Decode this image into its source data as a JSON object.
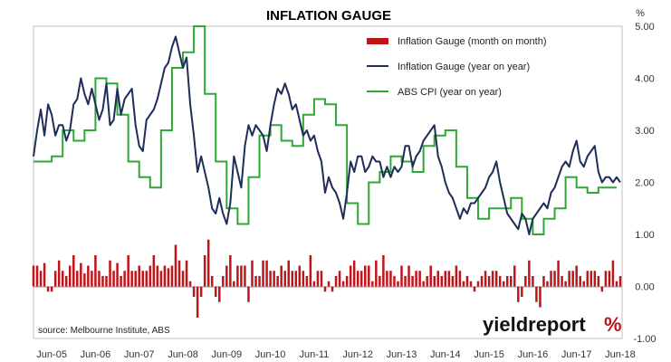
{
  "chart_data": {
    "type": "bar+line",
    "title": "INFLATION GAUGE",
    "unit_label": "%",
    "ylim": [
      -1.0,
      5.0
    ],
    "y_ticks": [
      "5.00",
      "4.00",
      "3.00",
      "2.00",
      "1.00",
      "0.00",
      "-1.00"
    ],
    "x_ticks": [
      "Jun-05",
      "Jun-06",
      "Jun-07",
      "Jun-08",
      "Jun-09",
      "Jun-10",
      "Jun-11",
      "Jun-12",
      "Jun-13",
      "Jun-14",
      "Jun-15",
      "Jun-16",
      "Jun-17",
      "Jun-18"
    ],
    "grid": false,
    "legend_position": "top-right",
    "source": "source: Melbourne Institute, ABS",
    "brand_text": "yieldreport",
    "brand_symbol": "%",
    "series": [
      {
        "name": "Inflation Gauge (month on month)",
        "kind": "bar",
        "color": "#c0141b",
        "x": [
          "2005-01",
          "2005-02",
          "2005-03",
          "2005-04",
          "2005-05",
          "2005-06",
          "2005-07",
          "2005-08",
          "2005-09",
          "2005-10",
          "2005-11",
          "2005-12",
          "2006-01",
          "2006-02",
          "2006-03",
          "2006-04",
          "2006-05",
          "2006-06",
          "2006-07",
          "2006-08",
          "2006-09",
          "2006-10",
          "2006-11",
          "2006-12",
          "2007-01",
          "2007-02",
          "2007-03",
          "2007-04",
          "2007-05",
          "2007-06",
          "2007-07",
          "2007-08",
          "2007-09",
          "2007-10",
          "2007-11",
          "2007-12",
          "2008-01",
          "2008-02",
          "2008-03",
          "2008-04",
          "2008-05",
          "2008-06",
          "2008-07",
          "2008-08",
          "2008-09",
          "2008-10",
          "2008-11",
          "2008-12",
          "2009-01",
          "2009-02",
          "2009-03",
          "2009-04",
          "2009-05",
          "2009-06",
          "2009-07",
          "2009-08",
          "2009-09",
          "2009-10",
          "2009-11",
          "2009-12",
          "2010-01",
          "2010-02",
          "2010-03",
          "2010-04",
          "2010-05",
          "2010-06",
          "2010-07",
          "2010-08",
          "2010-09",
          "2010-10",
          "2010-11",
          "2010-12",
          "2011-01",
          "2011-02",
          "2011-03",
          "2011-04",
          "2011-05",
          "2011-06",
          "2011-07",
          "2011-08",
          "2011-09",
          "2011-10",
          "2011-11",
          "2011-12",
          "2012-01",
          "2012-02",
          "2012-03",
          "2012-04",
          "2012-05",
          "2012-06",
          "2012-07",
          "2012-08",
          "2012-09",
          "2012-10",
          "2012-11",
          "2012-12",
          "2013-01",
          "2013-02",
          "2013-03",
          "2013-04",
          "2013-05",
          "2013-06",
          "2013-07",
          "2013-08",
          "2013-09",
          "2013-10",
          "2013-11",
          "2013-12",
          "2014-01",
          "2014-02",
          "2014-03",
          "2014-04",
          "2014-05",
          "2014-06",
          "2014-07",
          "2014-08",
          "2014-09",
          "2014-10",
          "2014-11",
          "2014-12",
          "2015-01",
          "2015-02",
          "2015-03",
          "2015-04",
          "2015-05",
          "2015-06",
          "2015-07",
          "2015-08",
          "2015-09",
          "2015-10",
          "2015-11",
          "2015-12",
          "2016-01",
          "2016-02",
          "2016-03",
          "2016-04",
          "2016-05",
          "2016-06",
          "2016-07",
          "2016-08",
          "2016-09",
          "2016-10",
          "2016-11",
          "2016-12",
          "2017-01",
          "2017-02",
          "2017-03",
          "2017-04",
          "2017-05",
          "2017-06",
          "2017-07",
          "2017-08",
          "2017-09",
          "2017-10",
          "2017-11",
          "2017-12",
          "2018-01",
          "2018-02",
          "2018-03",
          "2018-04",
          "2018-05",
          "2018-06"
        ],
        "values": [
          0.4,
          0.4,
          0.3,
          0.45,
          -0.1,
          -0.1,
          0.3,
          0.5,
          0.3,
          0.2,
          0.4,
          0.6,
          0.3,
          0.45,
          0.25,
          0.4,
          0.3,
          0.6,
          0.3,
          0.2,
          0.2,
          0.5,
          0.3,
          0.45,
          0.2,
          0.3,
          0.6,
          0.3,
          0.3,
          0.4,
          0.3,
          0.3,
          0.4,
          0.6,
          0.4,
          0.3,
          0.4,
          0.35,
          0.4,
          0.8,
          0.5,
          0.3,
          0.5,
          0.1,
          -0.2,
          -0.6,
          -0.2,
          0.6,
          0.9,
          0.2,
          -0.2,
          -0.3,
          0.2,
          0.4,
          0.6,
          0.1,
          0.4,
          0.4,
          0.4,
          -0.3,
          0.5,
          0.2,
          0.2,
          0.5,
          0.5,
          0.3,
          0.3,
          0.2,
          0.4,
          0.3,
          0.5,
          0.3,
          0.3,
          0.4,
          0.3,
          0.2,
          0.6,
          0.1,
          0.3,
          0.3,
          -0.1,
          0.1,
          -0.1,
          0.2,
          0.3,
          0.1,
          0.2,
          0.4,
          0.5,
          0.3,
          0.3,
          0.4,
          0.4,
          0.1,
          0.5,
          0.2,
          0.6,
          0.3,
          0.3,
          0.2,
          0.1,
          0.4,
          0.2,
          0.4,
          0.2,
          0.3,
          0.3,
          0.1,
          0.2,
          0.4,
          0.2,
          0.3,
          0.2,
          0.3,
          0.3,
          0.2,
          0.4,
          0.3,
          0.1,
          0.2,
          0.1,
          -0.1,
          0.1,
          0.2,
          0.3,
          0.2,
          0.3,
          0.3,
          0.2,
          0.1,
          0.2,
          0.2,
          0.4,
          -0.3,
          -0.2,
          0.2,
          0.5,
          0.2,
          -0.3,
          -0.4,
          0.2,
          0.1,
          0.3,
          0.3,
          0.5,
          0.2,
          0.1,
          0.3,
          0.3,
          0.4,
          0.2,
          0.1,
          0.3,
          0.3,
          0.3,
          0.2,
          -0.1,
          0.3,
          0.3,
          0.5,
          0.1,
          0.2
        ]
      },
      {
        "name": "Inflation Gauge (year on year)",
        "kind": "line",
        "color": "#1f2d5a",
        "x": [
          "2005-01",
          "2005-02",
          "2005-03",
          "2005-04",
          "2005-05",
          "2005-06",
          "2005-07",
          "2005-08",
          "2005-09",
          "2005-10",
          "2005-11",
          "2005-12",
          "2006-01",
          "2006-02",
          "2006-03",
          "2006-04",
          "2006-05",
          "2006-06",
          "2006-07",
          "2006-08",
          "2006-09",
          "2006-10",
          "2006-11",
          "2006-12",
          "2007-01",
          "2007-02",
          "2007-03",
          "2007-04",
          "2007-05",
          "2007-06",
          "2007-07",
          "2007-08",
          "2007-09",
          "2007-10",
          "2007-11",
          "2007-12",
          "2008-01",
          "2008-02",
          "2008-03",
          "2008-04",
          "2008-05",
          "2008-06",
          "2008-07",
          "2008-08",
          "2008-09",
          "2008-10",
          "2008-11",
          "2008-12",
          "2009-01",
          "2009-02",
          "2009-03",
          "2009-04",
          "2009-05",
          "2009-06",
          "2009-07",
          "2009-08",
          "2009-09",
          "2009-10",
          "2009-11",
          "2009-12",
          "2010-01",
          "2010-02",
          "2010-03",
          "2010-04",
          "2010-05",
          "2010-06",
          "2010-07",
          "2010-08",
          "2010-09",
          "2010-10",
          "2010-11",
          "2010-12",
          "2011-01",
          "2011-02",
          "2011-03",
          "2011-04",
          "2011-05",
          "2011-06",
          "2011-07",
          "2011-08",
          "2011-09",
          "2011-10",
          "2011-11",
          "2011-12",
          "2012-01",
          "2012-02",
          "2012-03",
          "2012-04",
          "2012-05",
          "2012-06",
          "2012-07",
          "2012-08",
          "2012-09",
          "2012-10",
          "2012-11",
          "2012-12",
          "2013-01",
          "2013-02",
          "2013-03",
          "2013-04",
          "2013-05",
          "2013-06",
          "2013-07",
          "2013-08",
          "2013-09",
          "2013-10",
          "2013-11",
          "2013-12",
          "2014-01",
          "2014-02",
          "2014-03",
          "2014-04",
          "2014-05",
          "2014-06",
          "2014-07",
          "2014-08",
          "2014-09",
          "2014-10",
          "2014-11",
          "2014-12",
          "2015-01",
          "2015-02",
          "2015-03",
          "2015-04",
          "2015-05",
          "2015-06",
          "2015-07",
          "2015-08",
          "2015-09",
          "2015-10",
          "2015-11",
          "2015-12",
          "2016-01",
          "2016-02",
          "2016-03",
          "2016-04",
          "2016-05",
          "2016-06",
          "2016-07",
          "2016-08",
          "2016-09",
          "2016-10",
          "2016-11",
          "2016-12",
          "2017-01",
          "2017-02",
          "2017-03",
          "2017-04",
          "2017-05",
          "2017-06",
          "2017-07",
          "2017-08",
          "2017-09",
          "2017-10",
          "2017-11",
          "2017-12",
          "2018-01",
          "2018-02",
          "2018-03",
          "2018-04",
          "2018-05",
          "2018-06"
        ],
        "values": [
          2.5,
          3.0,
          3.4,
          2.9,
          3.5,
          3.3,
          2.9,
          3.1,
          3.1,
          2.8,
          3.0,
          3.5,
          3.6,
          4.0,
          3.7,
          3.5,
          3.8,
          3.5,
          3.2,
          3.4,
          3.9,
          3.1,
          3.2,
          3.8,
          3.3,
          3.6,
          3.7,
          3.8,
          3.1,
          2.7,
          2.6,
          3.2,
          3.3,
          3.4,
          3.6,
          3.9,
          4.2,
          4.3,
          4.6,
          4.8,
          4.5,
          4.2,
          4.4,
          3.5,
          2.9,
          2.2,
          2.5,
          2.2,
          1.9,
          1.5,
          1.4,
          1.7,
          1.4,
          1.2,
          1.6,
          2.5,
          2.2,
          1.9,
          2.7,
          3.1,
          2.9,
          3.1,
          3.0,
          2.9,
          2.6,
          3.1,
          3.5,
          3.8,
          3.7,
          3.9,
          3.7,
          3.4,
          3.5,
          3.2,
          2.9,
          3.0,
          2.8,
          2.9,
          2.6,
          2.4,
          1.8,
          2.1,
          1.9,
          1.8,
          1.6,
          1.3,
          1.8,
          2.4,
          2.2,
          2.5,
          2.5,
          2.2,
          2.3,
          2.5,
          2.4,
          2.4,
          2.1,
          2.3,
          2.1,
          2.3,
          2.2,
          2.3,
          2.7,
          2.7,
          2.3,
          2.5,
          2.6,
          2.8,
          2.9,
          3.0,
          3.1,
          2.5,
          2.3,
          2.0,
          1.8,
          1.7,
          1.5,
          1.3,
          1.5,
          1.4,
          1.6,
          1.6,
          1.7,
          1.8,
          1.9,
          2.1,
          2.2,
          2.4,
          2.0,
          1.7,
          1.4,
          1.3,
          1.2,
          1.1,
          1.4,
          1.3,
          1.0,
          1.3,
          1.4,
          1.5,
          1.6,
          1.5,
          1.8,
          1.9,
          2.1,
          2.3,
          2.4,
          2.3,
          2.6,
          2.8,
          2.4,
          2.3,
          2.5,
          2.6,
          2.7,
          2.2,
          2.0,
          2.1,
          2.1,
          2.0,
          2.1,
          2.0
        ]
      },
      {
        "name": "ABS CPI (year on year)",
        "kind": "step",
        "color": "#2ea836",
        "x": [
          "2005-03",
          "2005-06",
          "2005-09",
          "2005-12",
          "2006-03",
          "2006-06",
          "2006-09",
          "2006-12",
          "2007-03",
          "2007-06",
          "2007-09",
          "2007-12",
          "2008-03",
          "2008-06",
          "2008-09",
          "2008-12",
          "2009-03",
          "2009-06",
          "2009-09",
          "2009-12",
          "2010-03",
          "2010-06",
          "2010-09",
          "2010-12",
          "2011-03",
          "2011-06",
          "2011-09",
          "2011-12",
          "2012-03",
          "2012-06",
          "2012-09",
          "2012-12",
          "2013-03",
          "2013-06",
          "2013-09",
          "2013-12",
          "2014-03",
          "2014-06",
          "2014-09",
          "2014-12",
          "2015-03",
          "2015-06",
          "2015-09",
          "2015-12",
          "2016-03",
          "2016-06",
          "2016-09",
          "2016-12",
          "2017-03",
          "2017-06",
          "2017-09",
          "2017-12",
          "2018-03"
        ],
        "values": [
          2.4,
          2.5,
          3.0,
          2.8,
          3.0,
          4.0,
          3.9,
          3.3,
          2.4,
          2.1,
          1.9,
          3.0,
          4.2,
          4.5,
          5.0,
          3.7,
          2.4,
          1.5,
          1.2,
          2.1,
          2.9,
          3.1,
          2.8,
          2.7,
          3.3,
          3.6,
          3.5,
          3.1,
          1.6,
          1.2,
          2.0,
          2.2,
          2.5,
          2.4,
          2.2,
          2.7,
          2.9,
          3.0,
          2.3,
          1.7,
          1.3,
          1.5,
          1.5,
          1.7,
          1.3,
          1.0,
          1.3,
          1.5,
          2.1,
          1.9,
          1.8,
          1.9,
          1.9
        ]
      }
    ]
  }
}
